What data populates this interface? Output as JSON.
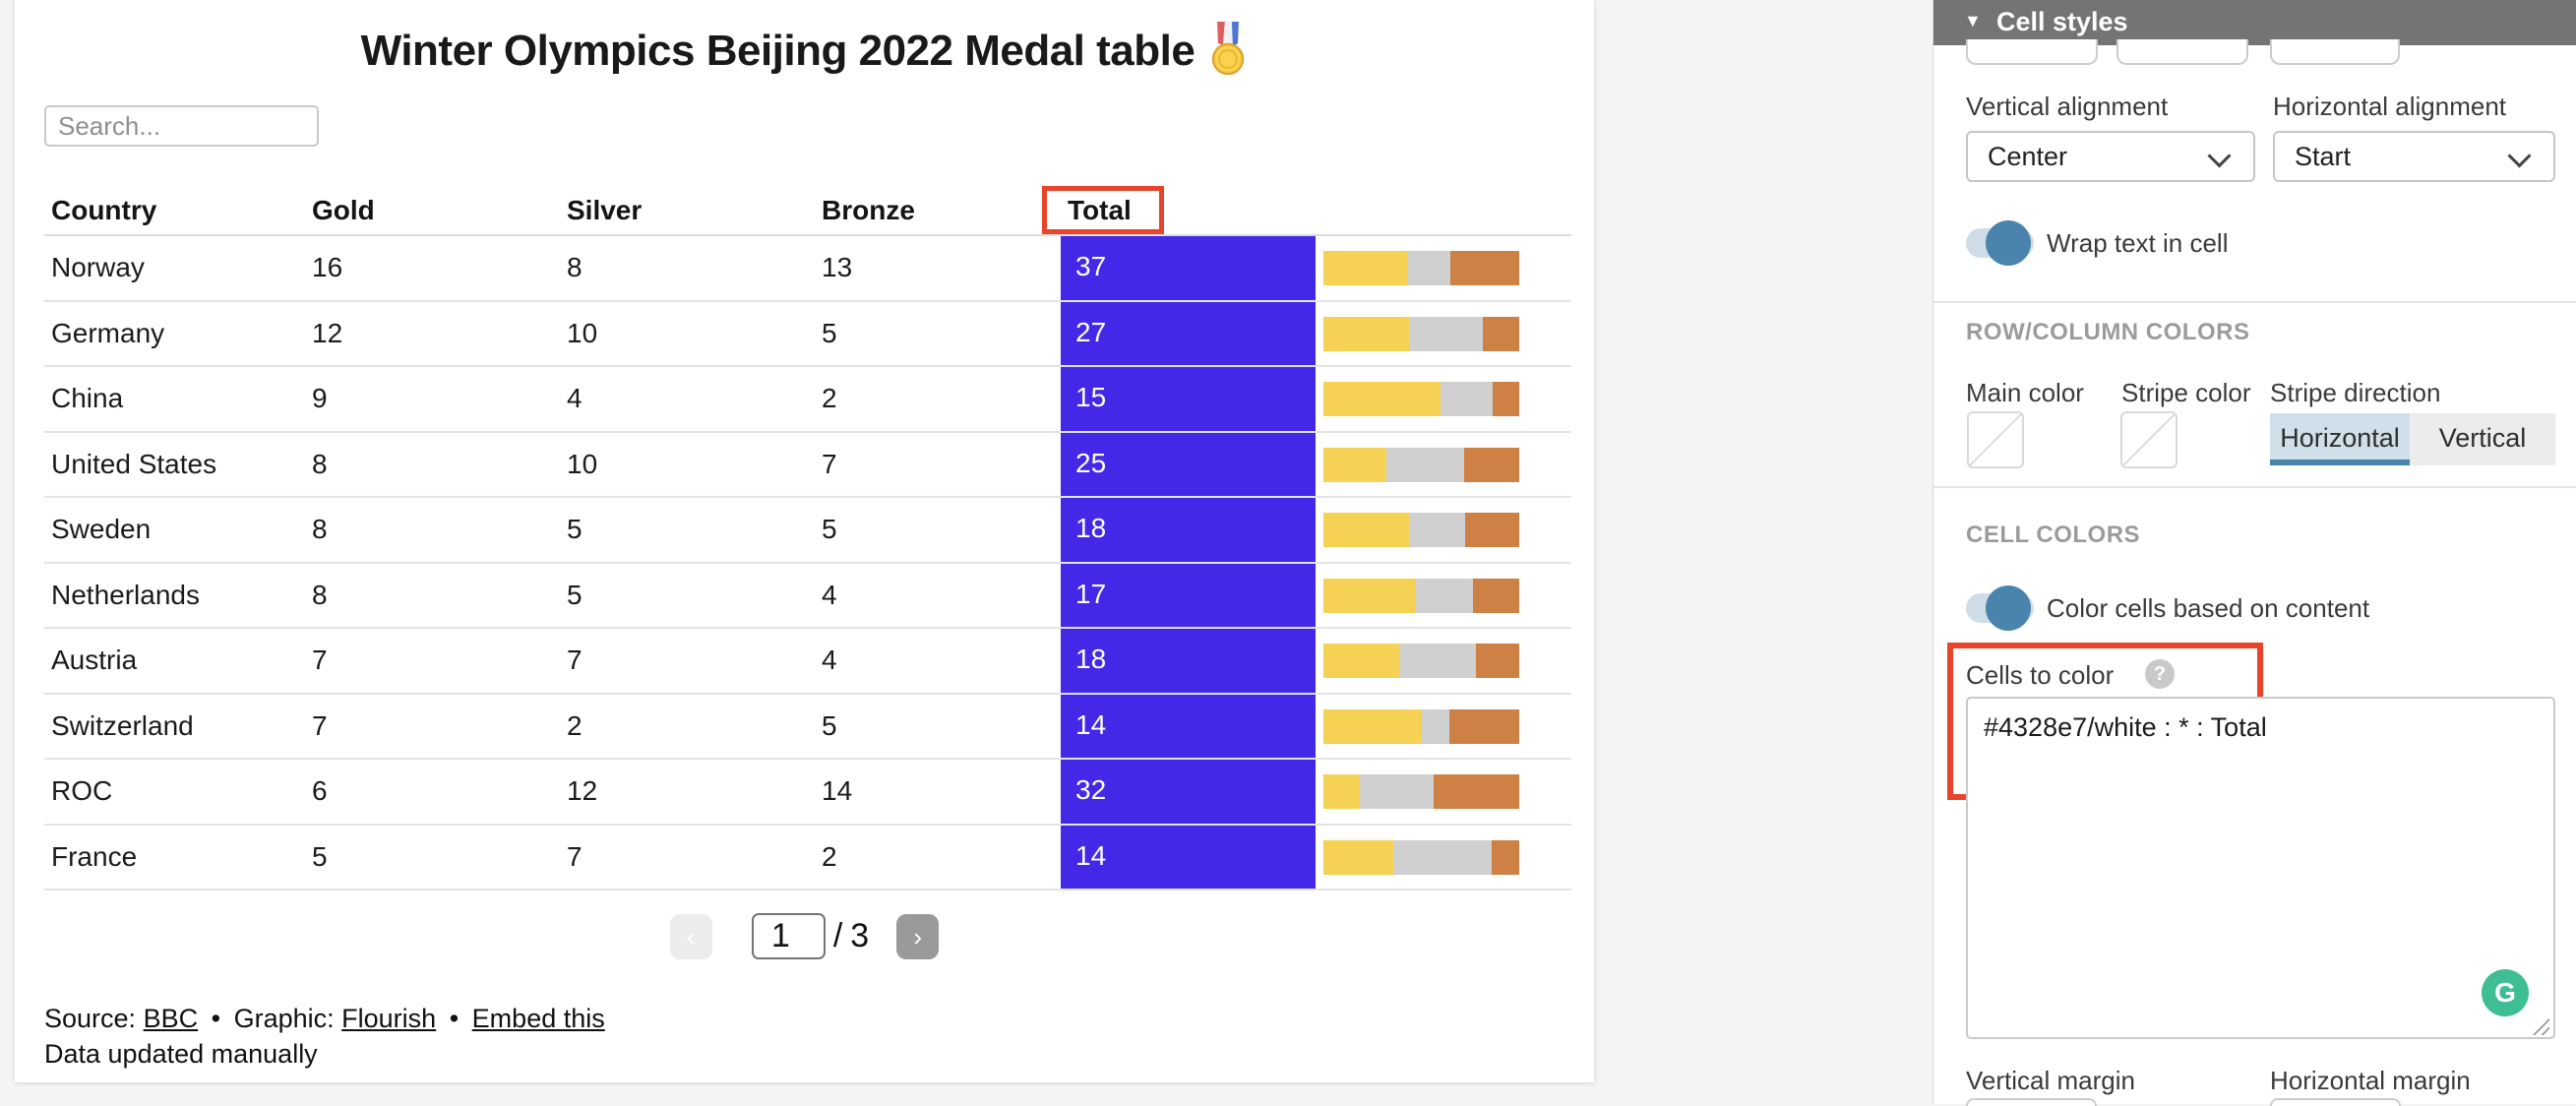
{
  "viz": {
    "title": "Winter Olympics Beijing 2022 Medal table",
    "title_icon": "sports-medal",
    "search_placeholder": "Search...",
    "columns": [
      "Country",
      "Gold",
      "Silver",
      "Bronze",
      "Total"
    ],
    "rows": [
      {
        "country": "Norway",
        "gold": 16,
        "silver": 8,
        "bronze": 13,
        "total": 37
      },
      {
        "country": "Germany",
        "gold": 12,
        "silver": 10,
        "bronze": 5,
        "total": 27
      },
      {
        "country": "China",
        "gold": 9,
        "silver": 4,
        "bronze": 2,
        "total": 15
      },
      {
        "country": "United States",
        "gold": 8,
        "silver": 10,
        "bronze": 7,
        "total": 25
      },
      {
        "country": "Sweden",
        "gold": 8,
        "silver": 5,
        "bronze": 5,
        "total": 18
      },
      {
        "country": "Netherlands",
        "gold": 8,
        "silver": 5,
        "bronze": 4,
        "total": 17
      },
      {
        "country": "Austria",
        "gold": 7,
        "silver": 7,
        "bronze": 4,
        "total": 18
      },
      {
        "country": "Switzerland",
        "gold": 7,
        "silver": 2,
        "bronze": 5,
        "total": 14
      },
      {
        "country": "ROC",
        "gold": 6,
        "silver": 12,
        "bronze": 14,
        "total": 32
      },
      {
        "country": "France",
        "gold": 5,
        "silver": 7,
        "bronze": 2,
        "total": 14
      }
    ],
    "pagination": {
      "prev_icon": "‹",
      "current_page": "1",
      "separator": "/",
      "total_pages": "3",
      "next_icon": "›"
    },
    "footer": {
      "source_label": "Source:",
      "source_link": "BBC",
      "sep1": "•",
      "graphic_label": "Graphic:",
      "graphic_link": "Flourish",
      "sep2": "•",
      "embed_link": "Embed this",
      "note": "Data updated manually"
    }
  },
  "panel": {
    "header": "Cell styles",
    "collapse_icon": "▼",
    "vertical_alignment": {
      "label": "Vertical alignment",
      "value": "Center"
    },
    "horizontal_alignment": {
      "label": "Horizontal alignment",
      "value": "Start"
    },
    "wrap_toggle": {
      "label": "Wrap text in cell",
      "state": "on"
    },
    "row_column_colors": {
      "section": "ROW/COLUMN COLORS",
      "main_color_label": "Main color",
      "stripe_color_label": "Stripe color",
      "stripe_direction_label": "Stripe direction",
      "options": [
        "Horizontal",
        "Vertical"
      ],
      "selected": "Horizontal"
    },
    "cell_colors": {
      "section": "CELL COLORS",
      "toggle_label": "Color cells based on content",
      "toggle_state": "on",
      "cells_to_color_label": "Cells to color",
      "help_icon": "?",
      "cells_to_color_value": "#4328e7/white : * : Total",
      "grammarly_icon": "G"
    },
    "margins": {
      "vertical_label": "Vertical margin",
      "horizontal_label": "Horizontal margin"
    }
  },
  "colors": {
    "total_cell_bg": "#4328e7",
    "total_cell_text": "#ffffff",
    "gold_bar": "#f5d253",
    "silver_bar": "#d0d0d0",
    "bronze_bar": "#cd8144",
    "annotation_red": "#e8432b",
    "toggle_on": "#4a84ac",
    "toggle_track": "#cfdde8",
    "segment_selected_bg": "#cfe0ea",
    "segment_selected_bar": "#4785ad",
    "grammarly_green": "#3fbe93",
    "panel_header_bg": "#747474"
  }
}
